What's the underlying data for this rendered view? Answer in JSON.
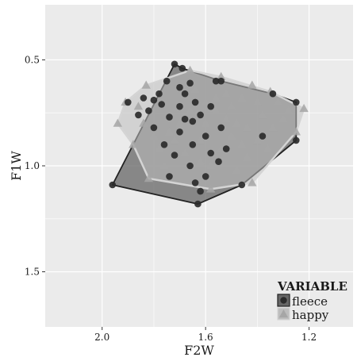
{
  "chart_data": {
    "type": "scatter",
    "title": "",
    "xlabel": "F2W",
    "ylabel": "F1W",
    "x_reversed": true,
    "y_reversed": true,
    "xlim": [
      2.22,
      1.03
    ],
    "ylim": [
      1.76,
      0.24
    ],
    "x_ticks": [
      2.0,
      1.6,
      1.2
    ],
    "x_tick_labels": [
      "2.0",
      "1.6",
      "1.2"
    ],
    "x_minor": [
      1.8,
      1.4
    ],
    "y_ticks": [
      0.5,
      1.0,
      1.5
    ],
    "y_tick_labels": [
      "0.5",
      "1.0",
      "1.5"
    ],
    "y_minor": [
      0.75,
      1.25
    ],
    "grid": true,
    "legend": {
      "title": "VARIABLE",
      "position": "bottom-right"
    },
    "colors": {
      "panel": "#ebebeb",
      "grid": "#ffffff",
      "fleece_point": "#2b2b2b",
      "fleece_fill": "#666666",
      "fleece_edge": "#222222",
      "happy_point": "#a6a6a6",
      "happy_fill": "#bdbdbd",
      "happy_edge": "#d4d4d4"
    },
    "series": [
      {
        "name": "fleece",
        "marker": "circle",
        "hull": [
          [
            1.96,
            1.09
          ],
          [
            1.63,
            1.18
          ],
          [
            1.46,
            1.09
          ],
          [
            1.25,
            0.88
          ],
          [
            1.25,
            0.7
          ],
          [
            1.34,
            0.66
          ],
          [
            1.54,
            0.6
          ],
          [
            1.69,
            0.54
          ],
          [
            1.72,
            0.52
          ]
        ],
        "points": [
          [
            1.72,
            0.52
          ],
          [
            1.96,
            1.09
          ],
          [
            1.63,
            1.18
          ],
          [
            1.25,
            0.88
          ],
          [
            1.25,
            0.7
          ],
          [
            1.34,
            0.66
          ],
          [
            1.54,
            0.6
          ],
          [
            1.69,
            0.54
          ],
          [
            1.46,
            1.09
          ],
          [
            1.38,
            0.86
          ],
          [
            1.62,
            1.12
          ],
          [
            1.74,
            1.05
          ],
          [
            1.56,
            0.6
          ],
          [
            1.58,
            0.72
          ],
          [
            1.54,
            0.82
          ],
          [
            1.86,
            0.76
          ],
          [
            1.82,
            0.74
          ],
          [
            1.8,
            0.82
          ],
          [
            1.76,
            0.9
          ],
          [
            1.7,
            0.72
          ],
          [
            1.68,
            0.66
          ],
          [
            1.65,
            0.79
          ],
          [
            1.6,
            0.86
          ],
          [
            1.55,
            0.98
          ],
          [
            1.52,
            0.92
          ],
          [
            1.64,
            0.7
          ],
          [
            1.66,
            0.61
          ],
          [
            1.78,
            0.66
          ],
          [
            1.84,
            0.68
          ],
          [
            1.9,
            0.7
          ],
          [
            1.74,
            0.77
          ],
          [
            1.7,
            0.84
          ],
          [
            1.72,
            0.95
          ],
          [
            1.66,
            1.0
          ],
          [
            1.64,
            1.08
          ],
          [
            1.6,
            1.05
          ],
          [
            1.58,
            0.94
          ],
          [
            1.77,
            0.71
          ],
          [
            1.62,
            0.76
          ],
          [
            1.8,
            0.69
          ],
          [
            1.75,
            0.6
          ],
          [
            1.68,
            0.78
          ],
          [
            1.7,
            0.63
          ],
          [
            1.65,
            0.9
          ]
        ]
      },
      {
        "name": "happy",
        "marker": "triangle",
        "hull": [
          [
            1.82,
            1.06
          ],
          [
            1.58,
            1.11
          ],
          [
            1.42,
            1.08
          ],
          [
            1.25,
            0.84
          ],
          [
            1.22,
            0.73
          ],
          [
            1.35,
            0.65
          ],
          [
            1.54,
            0.58
          ],
          [
            1.66,
            0.55
          ],
          [
            1.83,
            0.62
          ],
          [
            1.91,
            0.7
          ],
          [
            1.94,
            0.8
          ],
          [
            1.88,
            0.9
          ]
        ],
        "points": [
          [
            1.82,
            1.06
          ],
          [
            1.58,
            1.11
          ],
          [
            1.42,
            1.08
          ],
          [
            1.25,
            0.84
          ],
          [
            1.22,
            0.73
          ],
          [
            1.35,
            0.65
          ],
          [
            1.54,
            0.58
          ],
          [
            1.66,
            0.55
          ],
          [
            1.83,
            0.62
          ],
          [
            1.91,
            0.7
          ],
          [
            1.94,
            0.8
          ],
          [
            1.88,
            0.9
          ],
          [
            1.5,
            0.72
          ],
          [
            1.48,
            0.8
          ],
          [
            1.46,
            0.9
          ],
          [
            1.44,
            0.96
          ],
          [
            1.52,
            0.66
          ],
          [
            1.56,
            0.74
          ],
          [
            1.6,
            0.8
          ],
          [
            1.62,
            0.88
          ],
          [
            1.66,
            0.74
          ],
          [
            1.7,
            0.8
          ],
          [
            1.74,
            0.84
          ],
          [
            1.78,
            0.92
          ],
          [
            1.8,
            0.86
          ],
          [
            1.84,
            0.8
          ],
          [
            1.86,
            0.72
          ],
          [
            1.4,
            0.7
          ],
          [
            1.38,
            0.76
          ],
          [
            1.36,
            0.92
          ],
          [
            1.34,
            0.82
          ],
          [
            1.3,
            0.78
          ],
          [
            1.32,
            0.7
          ],
          [
            1.42,
            0.62
          ],
          [
            1.46,
            0.68
          ],
          [
            1.5,
            0.86
          ],
          [
            1.54,
            0.92
          ],
          [
            1.58,
            1.0
          ],
          [
            1.62,
            0.98
          ],
          [
            1.68,
            0.94
          ],
          [
            1.72,
            0.88
          ],
          [
            1.76,
            1.0
          ],
          [
            1.48,
            1.02
          ],
          [
            1.44,
            0.82
          ],
          [
            1.56,
            0.68
          ],
          [
            1.64,
            0.64
          ],
          [
            1.6,
            0.7
          ],
          [
            1.52,
            0.78
          ],
          [
            1.28,
            0.74
          ],
          [
            1.4,
            0.88
          ]
        ]
      }
    ]
  }
}
